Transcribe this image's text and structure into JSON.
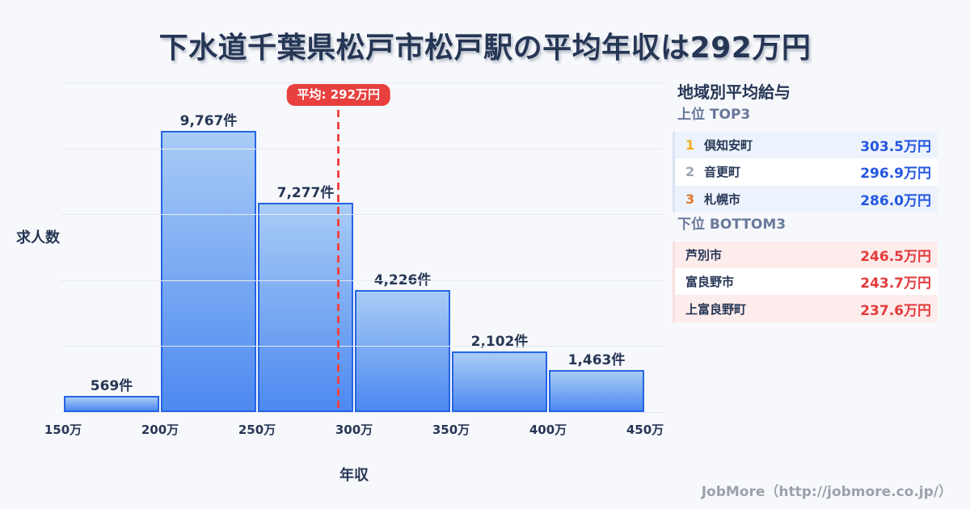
{
  "chart_data": {
    "type": "bar",
    "title": "下水道千葉県松戸市松戸駅の平均年収は292万円",
    "xlabel": "年収",
    "ylabel": "求人数",
    "bin_edges_man": [
      150,
      200,
      250,
      300,
      350,
      400,
      450
    ],
    "x_tick_labels": [
      "150万",
      "200万",
      "250万",
      "300万",
      "350万",
      "400万",
      "450万"
    ],
    "values": [
      569,
      9767,
      7277,
      4226,
      2102,
      1463
    ],
    "bar_labels": [
      "569件",
      "9,767件",
      "7,277件",
      "4,226件",
      "2,102件",
      "1,463件"
    ],
    "mean_man": 292,
    "mean_label": "平均: 292万円",
    "ylim": [
      0,
      11450
    ],
    "grid": true,
    "gridline_intervals": 5,
    "legend": "none"
  },
  "sidebar": {
    "title": "地域別平均給与",
    "top3": {
      "heading": "上位 TOP3",
      "rows": [
        {
          "rank": "1",
          "name": "倶知安町",
          "value": "303.5万円"
        },
        {
          "rank": "2",
          "name": "音更町",
          "value": "296.9万円"
        },
        {
          "rank": "3",
          "name": "札幌市",
          "value": "286.0万円"
        }
      ]
    },
    "bottom3": {
      "heading": "下位 BOTTOM3",
      "rows": [
        {
          "name": "芦別市",
          "value": "246.5万円"
        },
        {
          "name": "富良野市",
          "value": "243.7万円"
        },
        {
          "name": "上富良野町",
          "value": "237.6万円"
        }
      ]
    }
  },
  "footer": {
    "credit": "JobMore（http://jobmore.co.jp/）"
  },
  "theme": {
    "bg": "#f7f8fb",
    "ink": "#263655",
    "gridline": "#e5e9f0",
    "bar_border": "#2465e6",
    "bar_fill_top": "#a9ccf6",
    "bar_fill_bottom": "#4d89f0",
    "badge_red": "#e7403e",
    "mean_red": "#ee4444",
    "subhead": "#68799b",
    "top3_blue": "#2457e0",
    "bottom3_red": "#e33b3d",
    "rank1_gold": "#f0ac15",
    "rank2_gray": "#9aa5b5",
    "rank3_orange": "#e0772e",
    "top3_row_bg": "#edf3fc",
    "bottom3_row_bg": "#fdecec",
    "top3_strip": "#d9e3f3",
    "bottom3_strip": "#f9dede",
    "footer_gray": "#9ba1ab"
  }
}
